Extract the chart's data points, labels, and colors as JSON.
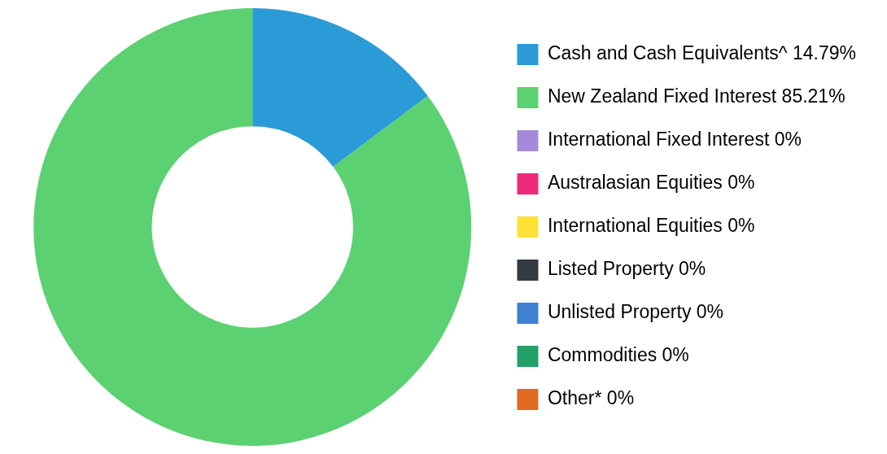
{
  "chart_data": {
    "type": "donut",
    "categories": [
      "Cash and Cash Equivalents^",
      "New Zealand Fixed Interest",
      "International Fixed Interest",
      "Australasian Equities",
      "International Equities",
      "Listed Property",
      "Unlisted Property",
      "Commodities",
      "Other*"
    ],
    "values": [
      14.79,
      85.21,
      0,
      0,
      0,
      0,
      0,
      0,
      0
    ],
    "value_labels": [
      "14.79%",
      "85.21%",
      "0%",
      "0%",
      "0%",
      "0%",
      "0%",
      "0%",
      "0%"
    ],
    "colors": [
      "#2a9bd6",
      "#5cd172",
      "#a68ad9",
      "#ee2a7b",
      "#fee134",
      "#323a42",
      "#3f80d0",
      "#21a068",
      "#e06a22"
    ],
    "legend": "right"
  }
}
